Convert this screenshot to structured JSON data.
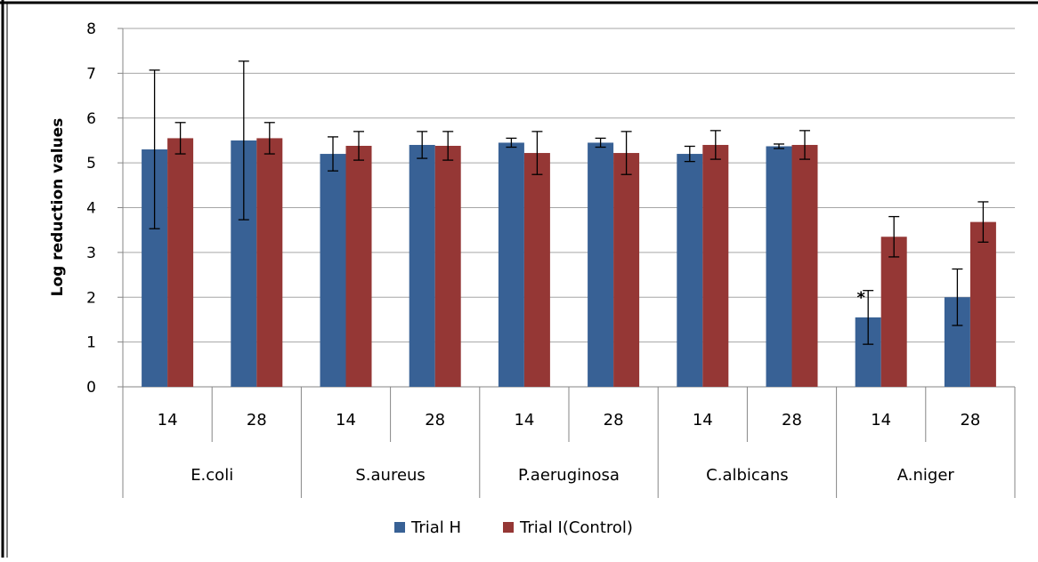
{
  "chart_data": {
    "type": "bar",
    "title": "",
    "xlabel": "",
    "ylabel": "Log reduction values",
    "ylim": [
      0,
      8
    ],
    "yticks": [
      "0",
      "1",
      "2",
      "3",
      "4",
      "5",
      "6",
      "7",
      "8"
    ],
    "grid": true,
    "legend_position": "bottom",
    "groups": [
      "E.coli",
      "S.aureus",
      "P.aeruginosa",
      "C.albicans",
      "A.niger"
    ],
    "categories": [
      "14",
      "28",
      "14",
      "28",
      "14",
      "28",
      "14",
      "28",
      "14",
      "28"
    ],
    "series": [
      {
        "name": "Trial H",
        "color": "#386195",
        "values": [
          5.3,
          5.5,
          5.2,
          5.4,
          5.45,
          5.45,
          5.2,
          5.37,
          1.55,
          2.0
        ],
        "error": [
          1.77,
          1.77,
          0.38,
          0.3,
          0.1,
          0.1,
          0.17,
          0.05,
          0.6,
          0.63
        ]
      },
      {
        "name": "Trial I(Control)",
        "color": "#953735",
        "values": [
          5.55,
          5.55,
          5.38,
          5.38,
          5.22,
          5.22,
          5.4,
          5.4,
          3.35,
          3.68
        ],
        "error": [
          0.35,
          0.35,
          0.32,
          0.32,
          0.48,
          0.48,
          0.32,
          0.32,
          0.45,
          0.45
        ]
      }
    ],
    "annotations": [
      {
        "text": "*",
        "category_index": 8,
        "series_index": 0
      }
    ]
  }
}
